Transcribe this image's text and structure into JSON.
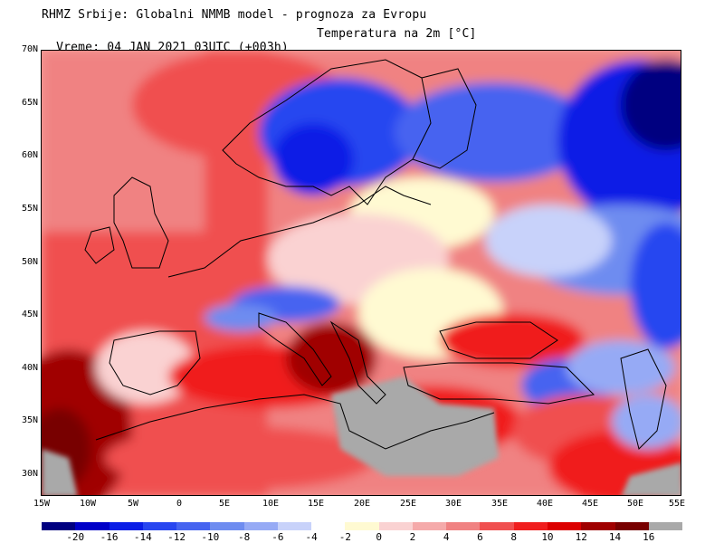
{
  "header": {
    "line1": "RHMZ Srbije: Globalni NMMB model - prognoza za Evropu",
    "line2": "Vreme: 04 JAN 2021 03UTC (+003h)",
    "parameter": "Temperatura na 2m [°C]"
  },
  "map": {
    "lat_labels": [
      "70N",
      "65N",
      "60N",
      "55N",
      "50N",
      "45N",
      "40N",
      "35N",
      "30N"
    ],
    "lon_labels": [
      "15W",
      "10W",
      "5W",
      "0",
      "5E",
      "10E",
      "15E",
      "20E",
      "25E",
      "30E",
      "35E",
      "40E",
      "45E",
      "50E",
      "55E"
    ],
    "colors": {
      "land_gray": "#a9a9a9",
      "border": "#000000"
    }
  },
  "legend": {
    "labels": [
      "-20",
      "-16",
      "-14",
      "-12",
      "-10",
      "-8",
      "-6",
      "-4",
      "-2",
      "0",
      "2",
      "4",
      "6",
      "8",
      "10",
      "12",
      "14",
      "16"
    ],
    "colors": [
      "#000080",
      "#0000c8",
      "#0a1ee6",
      "#2846f0",
      "#4664f0",
      "#6e8cf0",
      "#96aaf5",
      "#c8d2fa",
      "#ffffff",
      "#fffad2",
      "#fad2d2",
      "#f5aaaa",
      "#f08282",
      "#f05050",
      "#f01e1e",
      "#dc0000",
      "#a00000",
      "#780000",
      "#a9a9a9"
    ]
  }
}
